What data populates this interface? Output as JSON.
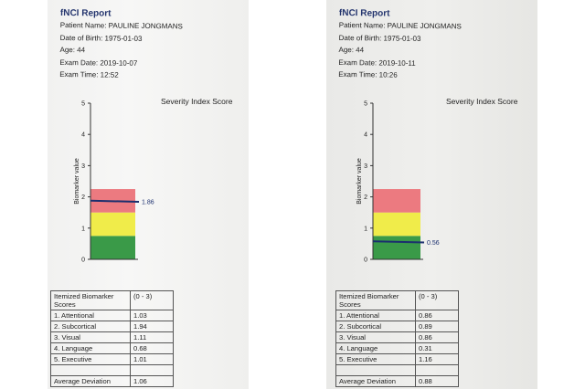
{
  "reports": [
    {
      "title": "fNCI Report",
      "patient_name": "Patient Name: PAULINE JONGMANS",
      "dob": "Date of Birth: 1975-01-03",
      "age": "Age: 44",
      "exam_date": "Exam Date: 2019-10-07",
      "exam_time": "Exam Time: 12:52",
      "chart_data": {
        "type": "bar",
        "title": "Severity Index Score",
        "ylabel": "Biomarker value",
        "ylim": [
          0,
          5
        ],
        "yticks": [
          "0",
          "1",
          "2",
          "3",
          "4",
          "5"
        ],
        "bands": [
          {
            "name": "green",
            "from": 0,
            "to": 0.75,
            "color": "#3a9a48"
          },
          {
            "name": "yellow",
            "from": 0.75,
            "to": 1.5,
            "color": "#f0ec4a"
          },
          {
            "name": "red",
            "from": 1.5,
            "to": 2.25,
            "color": "#ec7a80"
          }
        ],
        "score": 1.86,
        "score_label": "1.86",
        "line_color": "#1b2f6e"
      },
      "table": {
        "header": [
          "Itemized Biomarker Scores",
          "(0 - 3)"
        ],
        "rows": [
          [
            "1. Attentional",
            "1.03"
          ],
          [
            "2. Subcortical",
            "1.94"
          ],
          [
            "3. Visual",
            "1.11"
          ],
          [
            "4. Language",
            "0.68"
          ],
          [
            "5. Executive",
            "1.01"
          ],
          [
            "",
            ""
          ],
          [
            "Average Deviation",
            "1.06"
          ]
        ]
      }
    },
    {
      "title": "fNCI Report",
      "patient_name": "Patient Name: PAULINE JONGMANS",
      "dob": "Date of Birth: 1975-01-03",
      "age": "Age: 44",
      "exam_date": "Exam Date: 2019-10-11",
      "exam_time": "Exam Time: 10:26",
      "chart_data": {
        "type": "bar",
        "title": "Severity Index Score",
        "ylabel": "Biomarker value",
        "ylim": [
          0,
          5
        ],
        "yticks": [
          "0",
          "1",
          "2",
          "3",
          "4",
          "5"
        ],
        "bands": [
          {
            "name": "green",
            "from": 0,
            "to": 0.75,
            "color": "#3a9a48"
          },
          {
            "name": "yellow",
            "from": 0.75,
            "to": 1.5,
            "color": "#f0ec4a"
          },
          {
            "name": "red",
            "from": 1.5,
            "to": 2.25,
            "color": "#ec7a80"
          }
        ],
        "score": 0.56,
        "score_label": "0.56",
        "line_color": "#1b2f6e"
      },
      "table": {
        "header": [
          "Itemized Biomarker Scores",
          "(0 - 3)"
        ],
        "rows": [
          [
            "1. Attentional",
            "0.86"
          ],
          [
            "2. Subcortical",
            "0.89"
          ],
          [
            "3. Visual",
            "0.86"
          ],
          [
            "4. Language",
            "0.31"
          ],
          [
            "5. Executive",
            "1.16"
          ],
          [
            "",
            ""
          ],
          [
            "Average Deviation",
            "0.88"
          ]
        ]
      }
    }
  ]
}
